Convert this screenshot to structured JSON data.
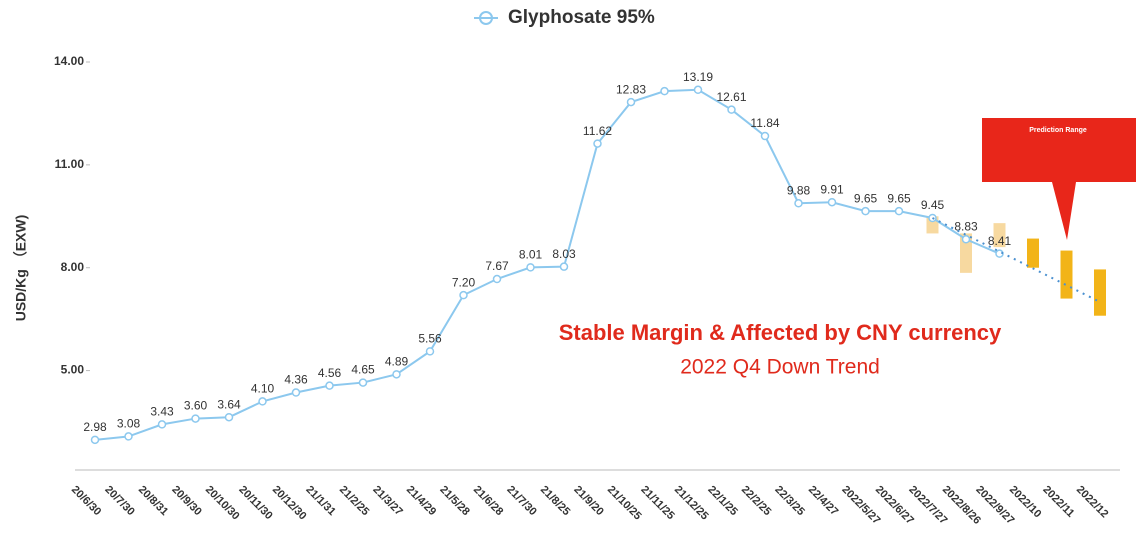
{
  "chart_data": {
    "type": "line",
    "legend": "Glyphosate 95%",
    "ylabel": "USD/Kg （EXW)",
    "annotations": [
      "Stable Margin & Affected by CNY currency",
      "2022 Q4 Down Trend"
    ],
    "callout": "Prediction Range",
    "categories": [
      "20/6/30",
      "20/7/30",
      "20/8/31",
      "20/9/30",
      "20/10/30",
      "20/11/30",
      "20/12/30",
      "21/1/31",
      "21/2/25",
      "21/3/27",
      "21/4/29",
      "21/5/28",
      "21/6/28",
      "21/7/30",
      "21/8/25",
      "21/9/20",
      "21/10/25",
      "21/11/25",
      "21/12/25",
      "22/1/25",
      "22/2/25",
      "22/3/25",
      "22/4/27",
      "2022/5/27",
      "2022/6/27",
      "2022/7/27",
      "2022/8/26",
      "2022/9/27",
      "2022/10",
      "2022/11",
      "2022/12"
    ],
    "series": [
      {
        "name": "Glyphosate 95%",
        "color": "#8cc8ee",
        "values": [
          2.98,
          3.08,
          3.43,
          3.6,
          3.64,
          4.1,
          4.36,
          4.56,
          4.65,
          4.89,
          5.56,
          7.2,
          7.67,
          8.01,
          8.03,
          11.62,
          12.83,
          13.15,
          13.19,
          12.61,
          11.84,
          9.88,
          9.91,
          9.65,
          9.65,
          9.45,
          8.83,
          8.41,
          null,
          null,
          null
        ],
        "value_labels": [
          "2.98",
          "3.08",
          "3.43",
          "3.60",
          "3.64",
          "4.10",
          "4.36",
          "4.56",
          "4.65",
          "4.89",
          "5.56",
          "7.20",
          "7.67",
          "8.01",
          "8.03",
          "11.62",
          "12.83",
          null,
          "13.19",
          "12.61",
          "11.84",
          "9.88",
          "9.91",
          "9.65",
          "9.65",
          "9.45",
          "8.83",
          "8.41",
          null,
          null,
          null
        ]
      }
    ],
    "trend_values": [
      null,
      null,
      null,
      null,
      null,
      null,
      null,
      null,
      null,
      null,
      null,
      null,
      null,
      null,
      null,
      null,
      null,
      null,
      null,
      null,
      null,
      null,
      null,
      null,
      null,
      9.45,
      null,
      null,
      null,
      null,
      7.0
    ],
    "trend_color": "#4a90d0",
    "range_low": [
      null,
      null,
      null,
      null,
      null,
      null,
      null,
      null,
      null,
      null,
      null,
      null,
      null,
      null,
      null,
      null,
      null,
      null,
      null,
      null,
      null,
      null,
      null,
      null,
      null,
      9.0,
      7.85,
      8.6,
      8.0,
      7.1,
      6.6
    ],
    "range_high": [
      null,
      null,
      null,
      null,
      null,
      null,
      null,
      null,
      null,
      null,
      null,
      null,
      null,
      null,
      null,
      null,
      null,
      null,
      null,
      null,
      null,
      null,
      null,
      null,
      null,
      9.5,
      9.0,
      9.3,
      8.85,
      8.5,
      7.95
    ],
    "range_colors": [
      null,
      null,
      null,
      null,
      null,
      null,
      null,
      null,
      null,
      null,
      null,
      null,
      null,
      null,
      null,
      null,
      null,
      null,
      null,
      null,
      null,
      null,
      null,
      null,
      null,
      "#f7d9a0",
      "#f7d9a0",
      "#f7d9a0",
      "#f2b418",
      "#f2b418",
      "#f2b418"
    ],
    "ylim": [
      2.1,
      14.0
    ],
    "yticks": [
      {
        "value": 5,
        "label": "5.00"
      },
      {
        "value": 8,
        "label": "8.00"
      },
      {
        "value": 11,
        "label": "11.00"
      },
      {
        "value": 14,
        "label": "14.00"
      }
    ],
    "grid": false
  }
}
